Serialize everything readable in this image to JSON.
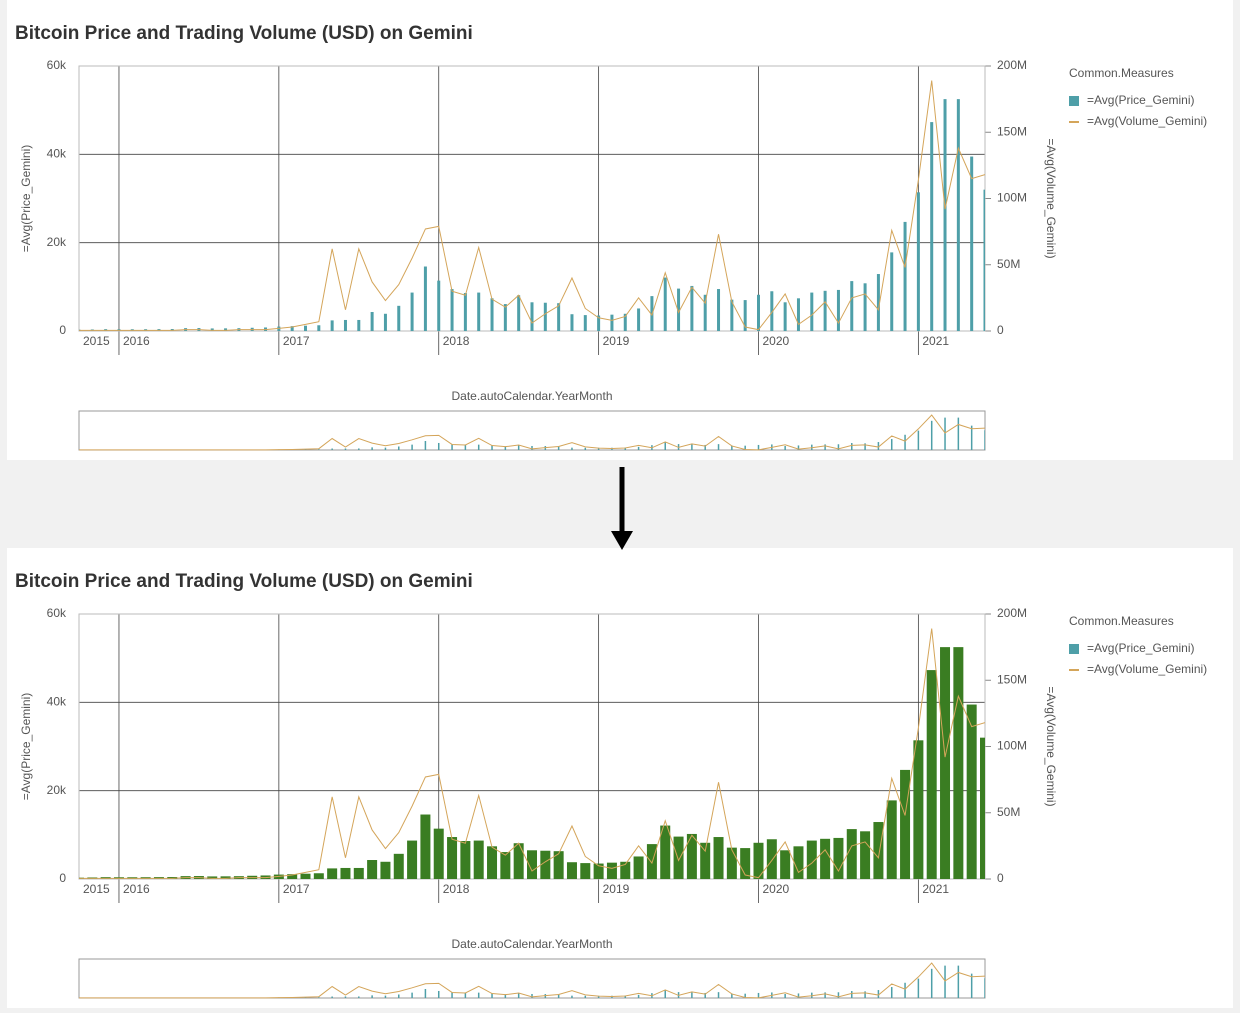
{
  "chart_data": [
    {
      "type": "bar",
      "title": "Bitcoin Price and Trading Volume (USD) on Gemini",
      "x_label": "Date.autoCalendar.YearMonth",
      "y_label": "=Avg(Price_Gemini)",
      "y2_label": "=Avg(Volume_Gemini)",
      "legend_title": "Common.Measures",
      "legend": "right",
      "grid": true,
      "categories": [
        "2015",
        null,
        null,
        "2016",
        null,
        null,
        null,
        null,
        null,
        null,
        null,
        null,
        null,
        null,
        null,
        "2017",
        null,
        null,
        null,
        null,
        null,
        null,
        null,
        null,
        null,
        null,
        null,
        "2018",
        null,
        null,
        null,
        null,
        null,
        null,
        null,
        null,
        null,
        null,
        null,
        "2019",
        null,
        null,
        null,
        null,
        null,
        null,
        null,
        null,
        null,
        null,
        null,
        "2020",
        null,
        null,
        null,
        null,
        null,
        null,
        null,
        null,
        null,
        null,
        null,
        "2021",
        null,
        null,
        null,
        null,
        null
      ],
      "series": [
        {
          "name": "=Avg(Price_Gemini)",
          "color": "#4e9fa8",
          "values": [
            300,
            350,
            420,
            400,
            400,
            410,
            430,
            450,
            650,
            670,
            580,
            600,
            640,
            730,
            800,
            1000,
            1100,
            1200,
            1300,
            2400,
            2500,
            2500,
            4300,
            3900,
            5700,
            8700,
            14600,
            11400,
            9500,
            8600,
            8700,
            7400,
            6100,
            8100,
            6500,
            6400,
            6300,
            3800,
            3600,
            3500,
            3700,
            3900,
            5100,
            7900,
            12100,
            9600,
            10200,
            8200,
            9500,
            7100,
            7000,
            8200,
            9000,
            6500,
            7400,
            8700,
            9100,
            9300,
            11300,
            10800,
            12900,
            17800,
            24700,
            31400,
            47300,
            52500,
            52500,
            39500,
            32000
          ]
        },
        {
          "name": "=Avg(Volume_Gemini)",
          "color": "#d4a55a",
          "type": "line",
          "axis": "y2",
          "values": [
            500000,
            500000,
            500000,
            500000,
            500000,
            500000,
            500000,
            500000,
            1000000,
            1000000,
            500000,
            500000,
            1000000,
            1000000,
            1000000,
            2000000,
            3000000,
            5000000,
            7000000,
            62000000,
            16000000,
            62000000,
            37000000,
            23000000,
            35000000,
            55000000,
            77000000,
            79000000,
            30000000,
            27000000,
            63000000,
            24000000,
            18000000,
            27000000,
            6000000,
            13000000,
            19000000,
            40000000,
            17000000,
            10000000,
            8000000,
            11000000,
            25000000,
            12000000,
            44000000,
            14000000,
            33000000,
            21000000,
            73000000,
            22000000,
            3000000,
            1000000,
            14000000,
            28000000,
            5000000,
            12000000,
            22000000,
            6000000,
            25000000,
            28000000,
            16000000,
            76000000,
            48000000,
            114000000,
            189000000,
            92000000,
            138000000,
            115000000,
            118000000
          ]
        }
      ],
      "ylim": [
        0,
        60000
      ],
      "yticks": [
        0,
        {
          "value": 20000,
          "label": "20k"
        },
        {
          "value": 40000,
          "label": "40k"
        },
        {
          "value": 60000,
          "label": "60k"
        }
      ],
      "y2lim": [
        0,
        200000000
      ],
      "y2ticks": [
        0,
        {
          "value": 50000000,
          "label": "50M"
        },
        {
          "value": 100000000,
          "label": "100M"
        },
        {
          "value": 150000000,
          "label": "150M"
        },
        {
          "value": 200000000,
          "label": "200M"
        }
      ]
    },
    {
      "type": "bar",
      "title": "Bitcoin Price and Trading Volume (USD) on Gemini",
      "x_label": "Date.autoCalendar.YearMonth",
      "y_label": "=Avg(Price_Gemini)",
      "y2_label": "=Avg(Volume_Gemini)",
      "legend_title": "Common.Measures",
      "legend": "right",
      "grid": true,
      "bar_color": "#3a7d22",
      "categories": [
        "2015",
        null,
        null,
        "2016",
        null,
        null,
        null,
        null,
        null,
        null,
        null,
        null,
        null,
        null,
        null,
        "2017",
        null,
        null,
        null,
        null,
        null,
        null,
        null,
        null,
        null,
        null,
        null,
        "2018",
        null,
        null,
        null,
        null,
        null,
        null,
        null,
        null,
        null,
        null,
        null,
        "2019",
        null,
        null,
        null,
        null,
        null,
        null,
        null,
        null,
        null,
        null,
        null,
        "2020",
        null,
        null,
        null,
        null,
        null,
        null,
        null,
        null,
        null,
        null,
        null,
        "2021",
        null,
        null,
        null,
        null,
        null
      ],
      "series": [
        {
          "name": "=Avg(Price_Gemini)",
          "color": "#4e9fa8",
          "values": [
            300,
            350,
            420,
            400,
            400,
            410,
            430,
            450,
            650,
            670,
            580,
            600,
            640,
            730,
            800,
            1000,
            1100,
            1200,
            1300,
            2400,
            2500,
            2500,
            4300,
            3900,
            5700,
            8700,
            14600,
            11400,
            9500,
            8600,
            8700,
            7400,
            6100,
            8100,
            6500,
            6400,
            6300,
            3800,
            3600,
            3500,
            3700,
            3900,
            5100,
            7900,
            12100,
            9600,
            10200,
            8200,
            9500,
            7100,
            7000,
            8200,
            9000,
            6500,
            7400,
            8700,
            9100,
            9300,
            11300,
            10800,
            12900,
            17800,
            24700,
            31400,
            47300,
            52500,
            52500,
            39500,
            32000
          ]
        },
        {
          "name": "=Avg(Volume_Gemini)",
          "color": "#d4a55a",
          "type": "line",
          "axis": "y2",
          "values": [
            500000,
            500000,
            500000,
            500000,
            500000,
            500000,
            500000,
            500000,
            1000000,
            1000000,
            500000,
            500000,
            1000000,
            1000000,
            1000000,
            2000000,
            3000000,
            5000000,
            7000000,
            62000000,
            16000000,
            62000000,
            37000000,
            23000000,
            35000000,
            55000000,
            77000000,
            79000000,
            30000000,
            27000000,
            63000000,
            24000000,
            18000000,
            27000000,
            6000000,
            13000000,
            19000000,
            40000000,
            17000000,
            10000000,
            8000000,
            11000000,
            25000000,
            12000000,
            44000000,
            14000000,
            33000000,
            21000000,
            73000000,
            22000000,
            3000000,
            1000000,
            14000000,
            28000000,
            5000000,
            12000000,
            22000000,
            6000000,
            25000000,
            28000000,
            16000000,
            76000000,
            48000000,
            114000000,
            189000000,
            92000000,
            138000000,
            115000000,
            118000000
          ]
        }
      ],
      "ylim": [
        0,
        60000
      ],
      "yticks": [
        0,
        {
          "value": 20000,
          "label": "20k"
        },
        {
          "value": 40000,
          "label": "40k"
        },
        {
          "value": 60000,
          "label": "60k"
        }
      ],
      "y2lim": [
        0,
        200000000
      ],
      "y2ticks": [
        0,
        {
          "value": 50000000,
          "label": "50M"
        },
        {
          "value": 100000000,
          "label": "100M"
        },
        {
          "value": 150000000,
          "label": "150M"
        },
        {
          "value": 200000000,
          "label": "200M"
        }
      ]
    }
  ]
}
